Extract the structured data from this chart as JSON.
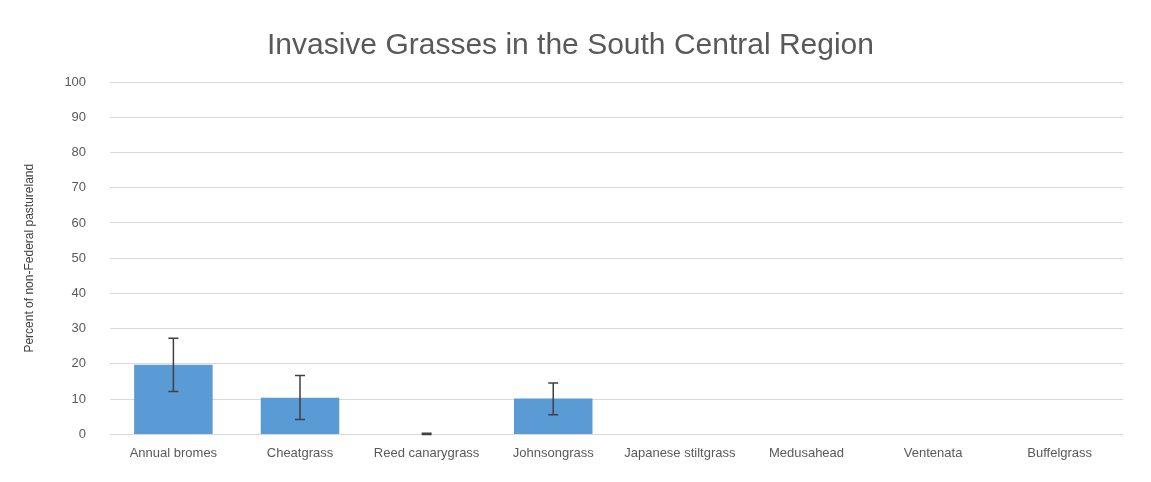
{
  "chart_data": {
    "type": "bar",
    "title": "Invasive Grasses in the South Central Region",
    "ylabel": "Percent of non-Federal pastureland",
    "categories": [
      "Annual bromes",
      "Cheatgrass",
      "Reed canarygrass",
      "Johnsongrass",
      "Japanese stiltgrass",
      "Medusahead",
      "Ventenata",
      "Buffelgrass"
    ],
    "values": [
      19.8,
      10.4,
      0.1,
      10.2,
      0,
      0,
      0,
      0
    ],
    "errors": [
      [
        12.2,
        27.3
      ],
      [
        4.2,
        16.7
      ],
      [
        0,
        0.3
      ],
      [
        5.6,
        14.6
      ],
      null,
      null,
      null,
      null
    ],
    "color": "#5b9bd5",
    "ylim": [
      0,
      100
    ],
    "yticks": [
      0,
      10,
      20,
      30,
      40,
      50,
      60,
      70,
      80,
      90,
      100
    ],
    "grid": "y",
    "legend": false
  }
}
